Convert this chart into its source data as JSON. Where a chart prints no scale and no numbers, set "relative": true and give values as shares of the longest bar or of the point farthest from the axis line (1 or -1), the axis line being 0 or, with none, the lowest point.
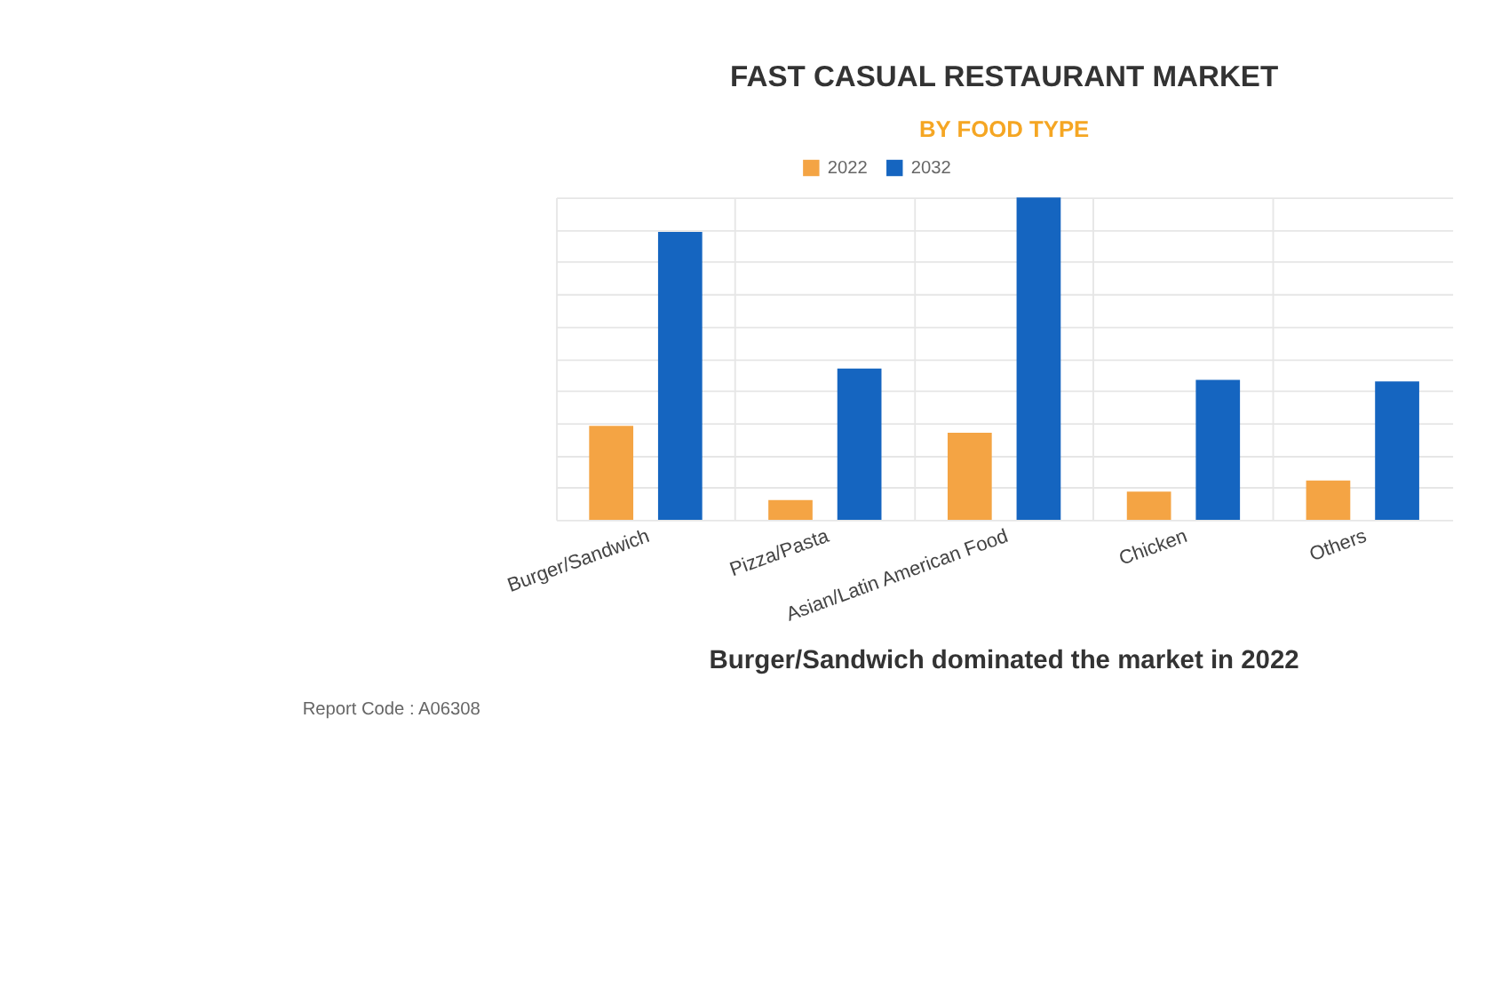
{
  "chart_data": {
    "type": "bar",
    "title": "FAST CASUAL RESTAURANT MARKET",
    "subtitle": "BY FOOD TYPE",
    "categories": [
      "Burger/Sandwich",
      "Pizza/Pasta",
      "Asian/Latin American Food",
      "Chicken",
      "Others"
    ],
    "relative": true,
    "series": [
      {
        "name": "2022",
        "color": "#f4a444",
        "values": [
          0.291,
          0.061,
          0.27,
          0.087,
          0.122
        ]
      },
      {
        "name": "2032",
        "color": "#1565c0",
        "values": [
          0.893,
          0.469,
          1.0,
          0.434,
          0.429
        ]
      }
    ],
    "grid": true,
    "legend": "top",
    "annotations": [
      "Burger/Sandwich dominated the market in 2022",
      "Report Code : A06308"
    ]
  }
}
